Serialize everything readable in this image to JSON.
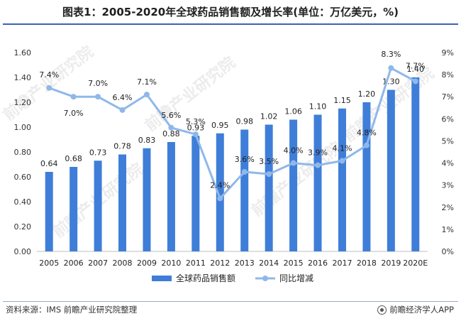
{
  "title": "图表1：2005-2020年全球药品销售额及增长率(单位：万亿美元，%)",
  "source": "资料来源：IMS 前瞻产业研究院整理",
  "brand": "前瞻经济学人APP",
  "watermark": "前瞻产业研究院",
  "colors": {
    "bar": "#3f7ed8",
    "line": "#8fb8ea",
    "title_rule": "#3a62b8"
  },
  "chart_data": {
    "type": "bar+line",
    "categories": [
      "2005",
      "2006",
      "2007",
      "2008",
      "2009",
      "2010",
      "2011",
      "2012",
      "2013",
      "2014",
      "2015",
      "2016",
      "2017",
      "2018",
      "2019",
      "2020E"
    ],
    "series": [
      {
        "name": "全球药品销售额",
        "type": "bar",
        "axis": "left",
        "values": [
          0.64,
          0.68,
          0.73,
          0.78,
          0.83,
          0.88,
          0.93,
          0.95,
          0.98,
          1.02,
          1.06,
          1.1,
          1.15,
          1.2,
          1.3,
          1.4
        ],
        "labels": [
          "0.64",
          "0.68",
          "0.73",
          "0.78",
          "0.83",
          "0.88",
          "0.93",
          "0.95",
          "0.98",
          "1.02",
          "1.06",
          "1.10",
          "1.15",
          "1.20",
          "1.30",
          "1.40"
        ]
      },
      {
        "name": "同比增减",
        "type": "line",
        "axis": "right",
        "values": [
          7.4,
          7.0,
          7.0,
          6.4,
          7.1,
          5.6,
          5.3,
          2.4,
          3.6,
          3.5,
          4.0,
          3.9,
          4.1,
          4.8,
          8.3,
          7.7
        ],
        "labels": [
          "7.4%",
          "7.0%",
          "7.0%",
          "6.4%",
          "7.1%",
          "5.6%",
          "5.3%",
          "2.4%",
          "3.6%",
          "3.5%",
          "4.0%",
          "3.9%",
          "4.1%",
          "4.8%",
          "8.3%",
          "7.7%"
        ]
      }
    ],
    "y_left": {
      "min": 0,
      "max": 1.6,
      "ticks": [
        "0.00",
        "0.20",
        "0.40",
        "0.60",
        "0.80",
        "1.00",
        "1.20",
        "1.40",
        "1.60"
      ]
    },
    "y_right": {
      "min": 0,
      "max": 9,
      "ticks": [
        "0%",
        "1%",
        "2%",
        "3%",
        "4%",
        "5%",
        "6%",
        "7%",
        "8%",
        "9%"
      ]
    },
    "legend_position": "bottom-center",
    "grid": false
  }
}
